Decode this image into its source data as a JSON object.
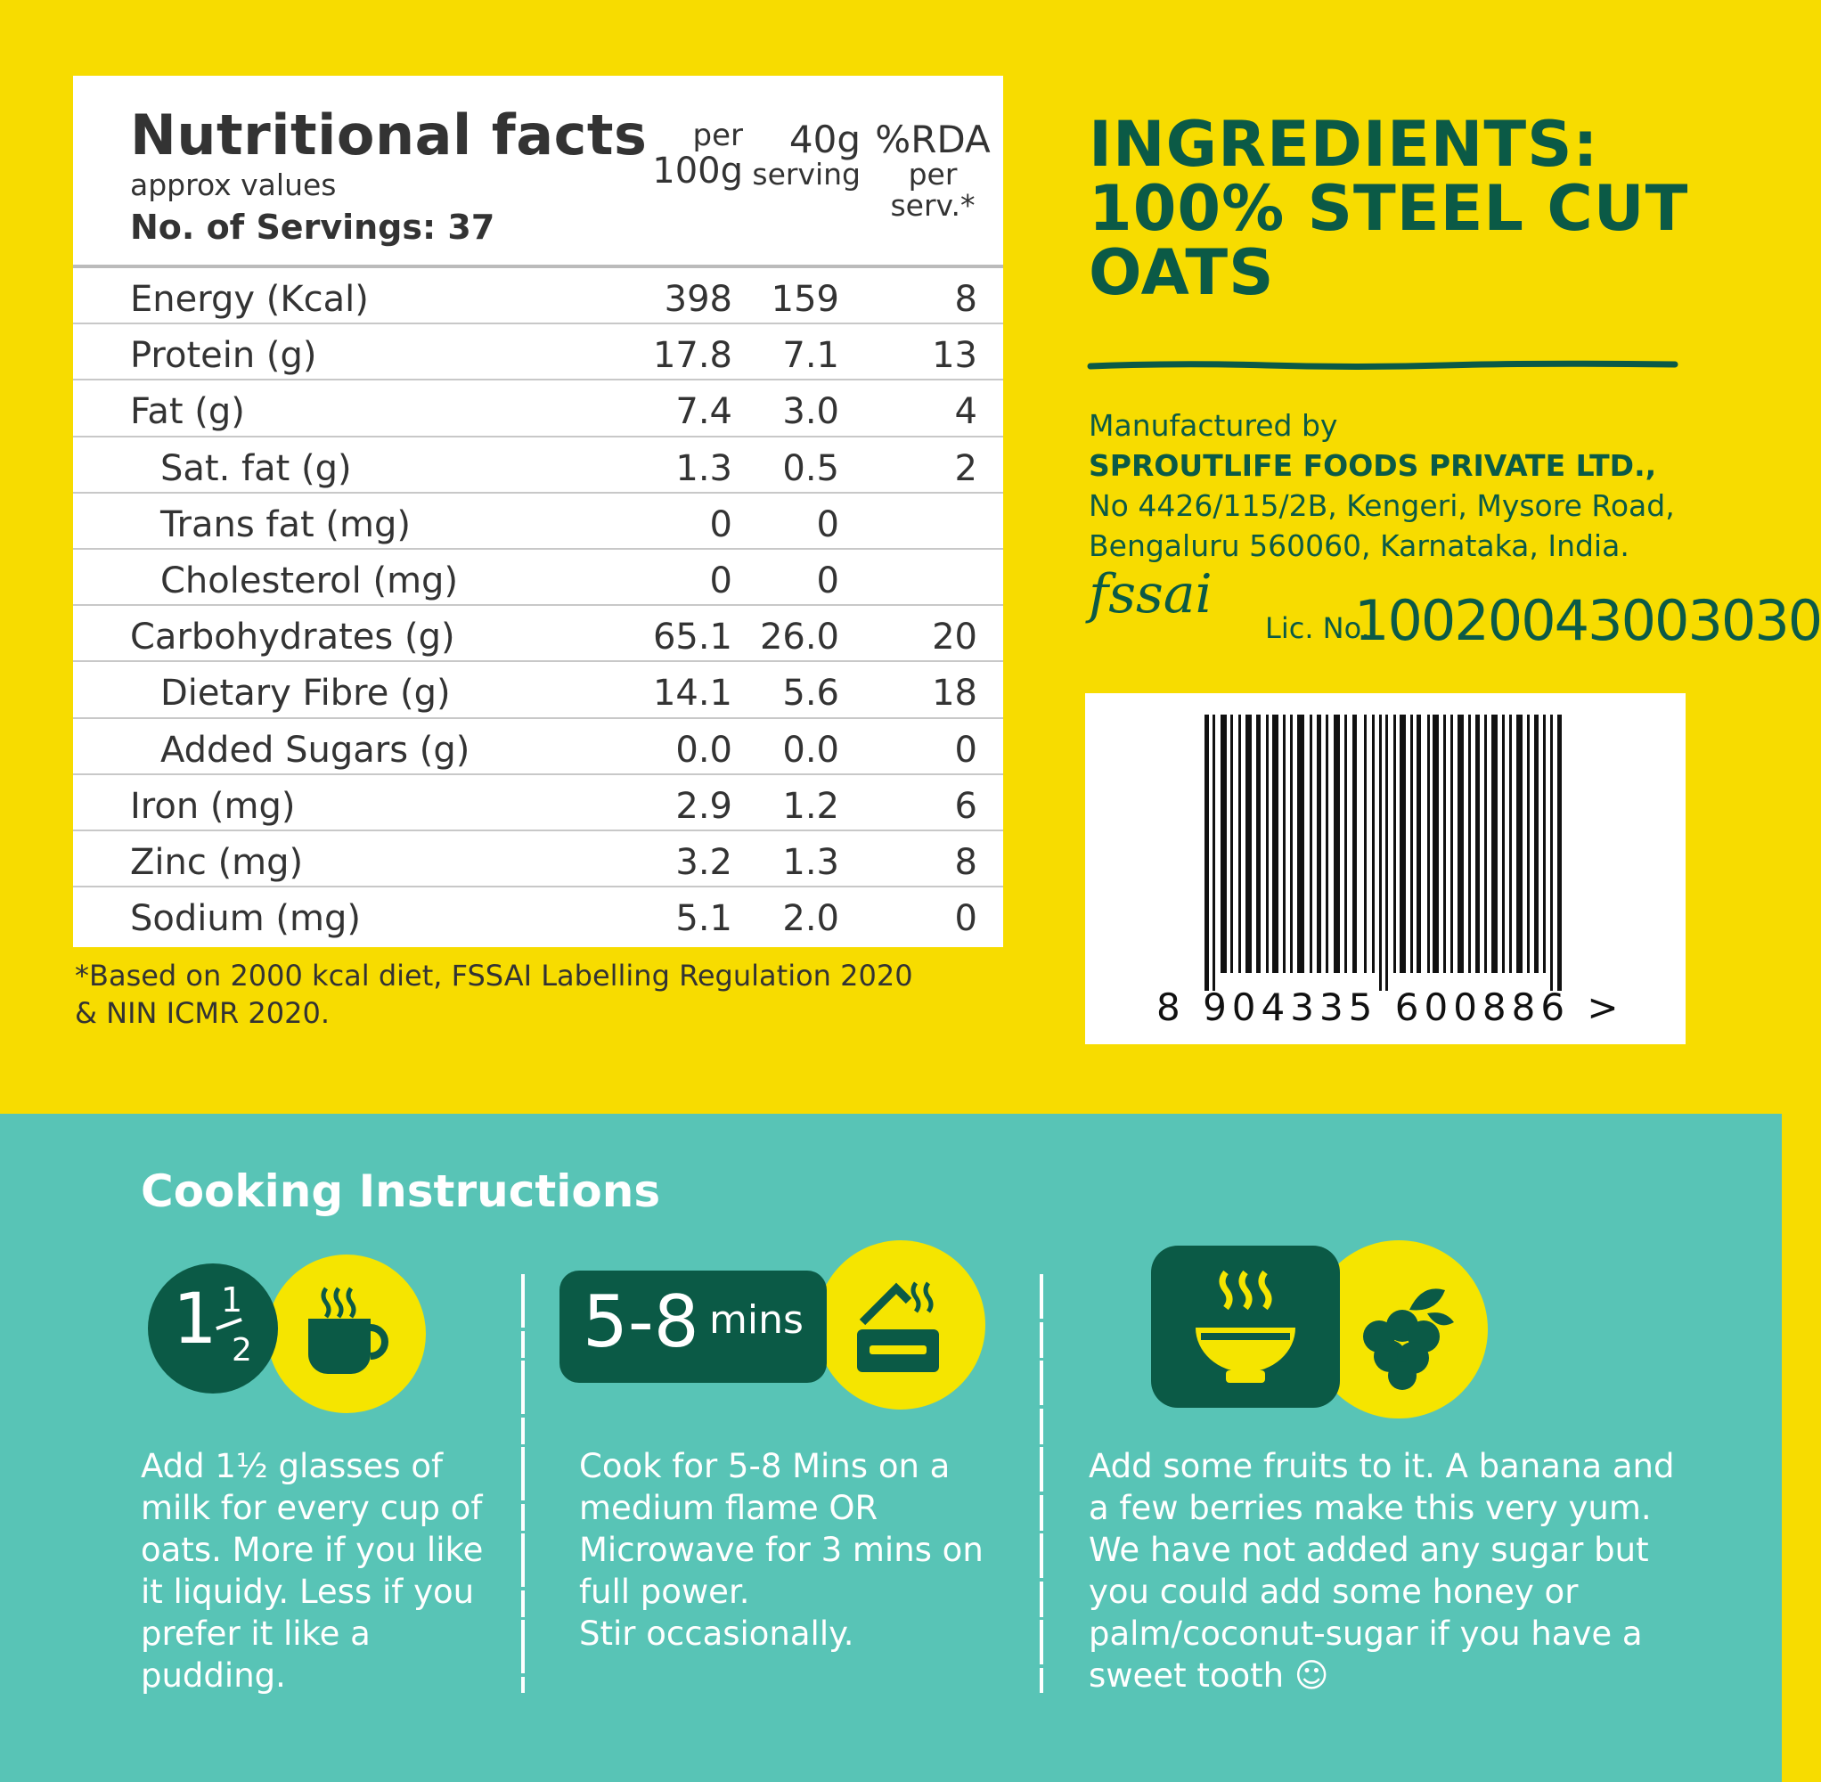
{
  "nutrition": {
    "title": "Nutritional facts",
    "subtitle": "approx values",
    "servings": "No. of Servings: 37",
    "col_per": "per",
    "col_100g": "100g",
    "col_40g": "40g",
    "col_serving": "serving",
    "col_rda": "%RDA",
    "col_rda_per": "per",
    "col_rda_serv": "serv.*",
    "rows": [
      {
        "label": "Energy (Kcal)",
        "per100": "398",
        "per40": "159",
        "rda": "8"
      },
      {
        "label": "Protein (g)",
        "per100": "17.8",
        "per40": "7.1",
        "rda": "13"
      },
      {
        "label": "Fat (g)",
        "per100": "7.4",
        "per40": "3.0",
        "rda": "4"
      },
      {
        "label": "Sat. fat (g)",
        "per100": "1.3",
        "per40": "0.5",
        "rda": "2"
      },
      {
        "label": "Trans fat (mg)",
        "per100": "0",
        "per40": "0",
        "rda": ""
      },
      {
        "label": "Cholesterol (mg)",
        "per100": "0",
        "per40": "0",
        "rda": ""
      },
      {
        "label": "Carbohydrates (g)",
        "per100": "65.1",
        "per40": "26.0",
        "rda": "20"
      },
      {
        "label": "Dietary Fibre (g)",
        "per100": "14.1",
        "per40": "5.6",
        "rda": "18"
      },
      {
        "label": "Added Sugars (g)",
        "per100": "0.0",
        "per40": "0.0",
        "rda": "0"
      },
      {
        "label": "Iron (mg)",
        "per100": "2.9",
        "per40": "1.2",
        "rda": "6"
      },
      {
        "label": "Zinc (mg)",
        "per100": "3.2",
        "per40": "1.3",
        "rda": "8"
      },
      {
        "label": "Sodium (mg)",
        "per100": "5.1",
        "per40": "2.0",
        "rda": "0"
      }
    ],
    "footnote_line1": "*Based on 2000 kcal diet, FSSAI Labelling Regulation 2020",
    "footnote_line2": "& NIN ICMR 2020."
  },
  "ingredients": {
    "line1": "INGREDIENTS:",
    "line2": "100% STEEL CUT",
    "line3": "OATS"
  },
  "manufacturer": {
    "label": "Manufactured by",
    "name": "SPROUTLIFE FOODS PRIVATE LTD.,",
    "address_line1": "No 4426/115/2B, Kengeri, Mysore Road,",
    "address_line2": "Bengaluru 560060, Karnataka, India.",
    "fssai_logo_text": "fssai",
    "lic_label": "Lic. No.",
    "lic_number": "10020043003030"
  },
  "barcode": {
    "number": "8 904335 600886 >"
  },
  "cooking": {
    "title": "Cooking Instructions",
    "step1_badge_whole": "1",
    "step1_badge_num": "1",
    "step1_badge_den": "2",
    "step1_text": "Add 1½ glasses of milk for every cup of oats. More if you like it liquidy. Less if you prefer it like a pudding.",
    "step2_badge_big": "5-8",
    "step2_badge_small": "mins",
    "step2_text_line1": "Cook for 5-8 Mins on a",
    "step2_text_line2": "medium flame OR",
    "step2_text_line3": "Microwave for 3 mins on",
    "step2_text_line4": "full power.",
    "step2_text_line5": "Stir occasionally.",
    "step3_text": "Add some fruits to it. A banana and a few berries make this very yum. We have not added any sugar but you could add some honey or palm/coconut-sugar if you have a sweet tooth ☺"
  },
  "colors": {
    "yellow": "#f7dc00",
    "teal": "#58c4b6",
    "dark_green": "#0b5a46",
    "icon_yellow": "#f5e500"
  }
}
